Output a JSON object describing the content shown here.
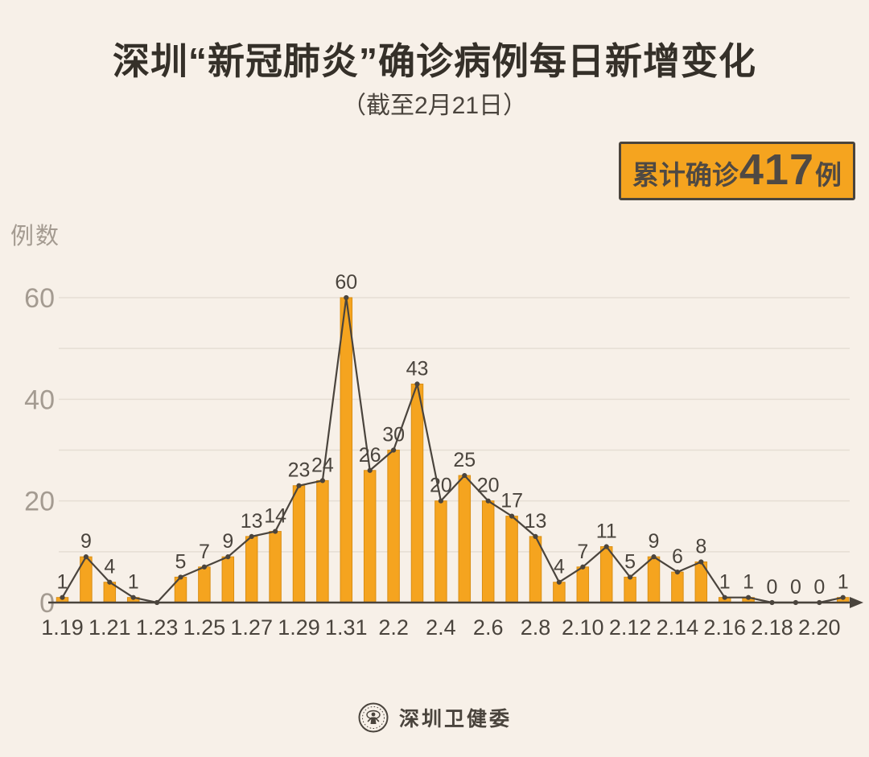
{
  "page": {
    "background": "#F7F0E8"
  },
  "header": {
    "title": "深圳“新冠肺炎”确诊病例每日新增变化",
    "subtitle": "（截至2月21日）"
  },
  "badge": {
    "prefix": "累计确诊",
    "value": "417",
    "suffix": "例"
  },
  "footer": {
    "org": "深圳卫健委"
  },
  "colors": {
    "background": "#F7F0E8",
    "bar": "#F5A41F",
    "bar_edge": "#D98E14",
    "line": "#4A443D",
    "text_dark": "#4A443D",
    "text_gray": "#A49B91",
    "grid": "#E6DED4",
    "badge_bg": "#F5A41F",
    "badge_border": "#4A443D"
  },
  "chart_data": {
    "type": "bar",
    "overlay": "line",
    "title": "深圳“新冠肺炎”确诊病例每日新增变化",
    "subtitle": "（截至2月21日）",
    "ylabel": "例数",
    "xlabel": "",
    "categories": [
      "1.19",
      "1.20",
      "1.21",
      "1.22",
      "1.23",
      "1.24",
      "1.25",
      "1.26",
      "1.27",
      "1.28",
      "1.29",
      "1.30",
      "1.31",
      "2.1",
      "2.2",
      "2.3",
      "2.4",
      "2.5",
      "2.6",
      "2.7",
      "2.8",
      "2.9",
      "2.10",
      "2.11",
      "2.12",
      "2.13",
      "2.14",
      "2.15",
      "2.16",
      "2.17",
      "2.18",
      "2.19",
      "2.20",
      "2.21"
    ],
    "values": [
      1,
      9,
      4,
      1,
      0,
      5,
      7,
      9,
      13,
      14,
      23,
      24,
      60,
      26,
      30,
      43,
      20,
      25,
      20,
      17,
      13,
      4,
      7,
      11,
      5,
      9,
      6,
      8,
      1,
      1,
      0,
      0,
      0,
      1
    ],
    "total": 417,
    "ylim": [
      0,
      60
    ],
    "yticks": [
      0,
      20,
      40,
      60
    ],
    "grid": true,
    "grid_step": 10,
    "legend": false,
    "xtick_indices": [
      0,
      2,
      4,
      6,
      8,
      10,
      12,
      14,
      16,
      18,
      20,
      22,
      24,
      26,
      28,
      30,
      32
    ],
    "xtick_labels": [
      "1.19",
      "1.21",
      "1.23",
      "1.25",
      "1.27",
      "1.29",
      "1.31",
      "2.2",
      "2.4",
      "2.6",
      "2.8",
      "2.10",
      "2.12",
      "2.14",
      "2.16",
      "2.18",
      "2.20"
    ],
    "hidden_value_labels": [
      4
    ]
  }
}
